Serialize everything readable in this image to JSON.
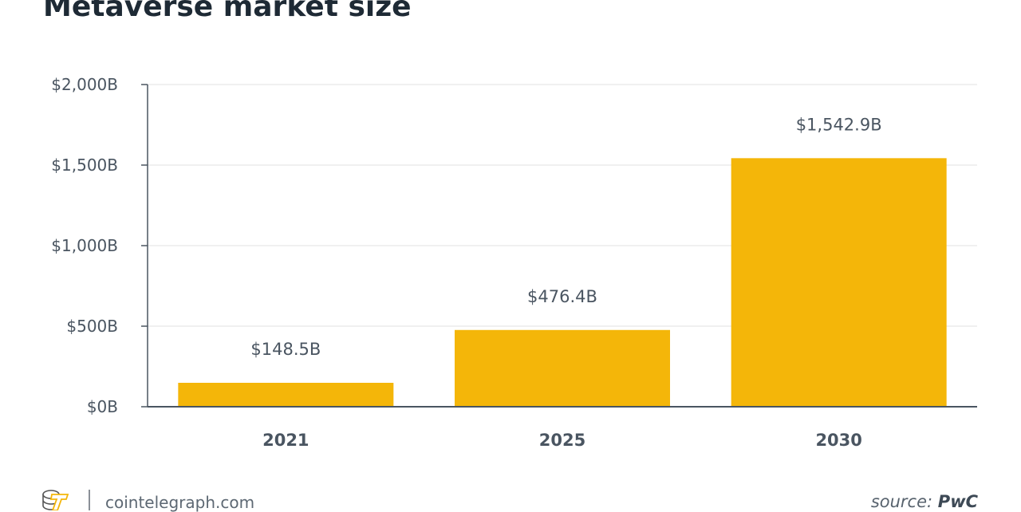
{
  "chart_data": {
    "type": "bar",
    "title": "Metaverse market size",
    "categories": [
      "2021",
      "2025",
      "2030"
    ],
    "values": [
      148.5,
      476.4,
      1542.9
    ],
    "data_labels": [
      "$148.5B",
      "$476.4B",
      "$1,542.9B"
    ],
    "ylim": [
      0,
      2000
    ],
    "yticks": [
      0,
      500,
      1000,
      1500,
      2000
    ],
    "ytick_labels": [
      "$0B",
      "$500B",
      "$1,000B",
      "$1,500B",
      "$2,000B"
    ],
    "xlabel": "",
    "ylabel": "",
    "grid": true,
    "bar_color": "#f4b609"
  },
  "footer": {
    "site": "cointelegraph.com",
    "source_prefix": "source:",
    "source_name": "PwC",
    "logo_icon": "cointelegraph-logo-icon"
  }
}
